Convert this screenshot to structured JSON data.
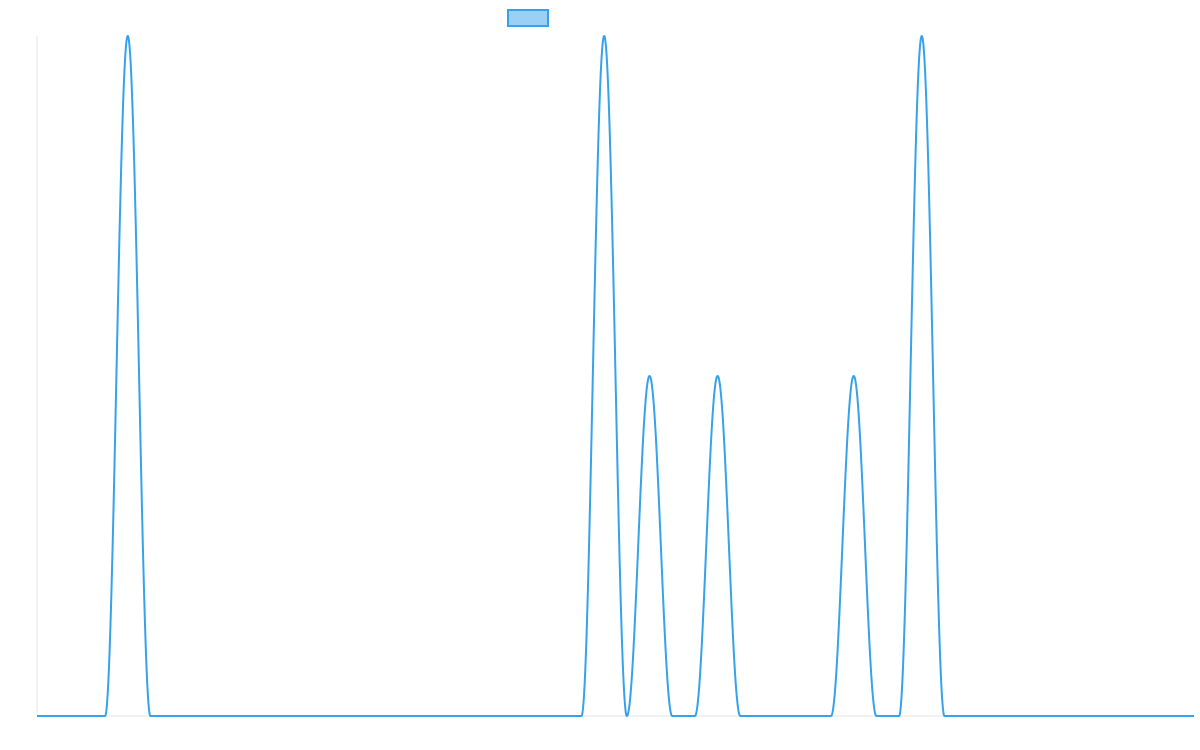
{
  "chart_data": {
    "type": "line",
    "title": "",
    "xlabel": "",
    "ylabel": "",
    "grid": false,
    "legend": {
      "position": "top-center",
      "entries": [
        {
          "name": "",
          "color": "#36a2eb",
          "fill": "#9ad0f5"
        }
      ]
    },
    "x_range": [
      0,
      51
    ],
    "y_range": [
      0,
      2
    ],
    "series": [
      {
        "name": "",
        "color": "#36a2eb",
        "peaks": [
          {
            "x": 4,
            "y": 2
          },
          {
            "x": 25,
            "y": 2
          },
          {
            "x": 27,
            "y": 1
          },
          {
            "x": 30,
            "y": 1
          },
          {
            "x": 36,
            "y": 1
          },
          {
            "x": 39,
            "y": 2
          }
        ],
        "peak_half_width": 1
      }
    ]
  }
}
